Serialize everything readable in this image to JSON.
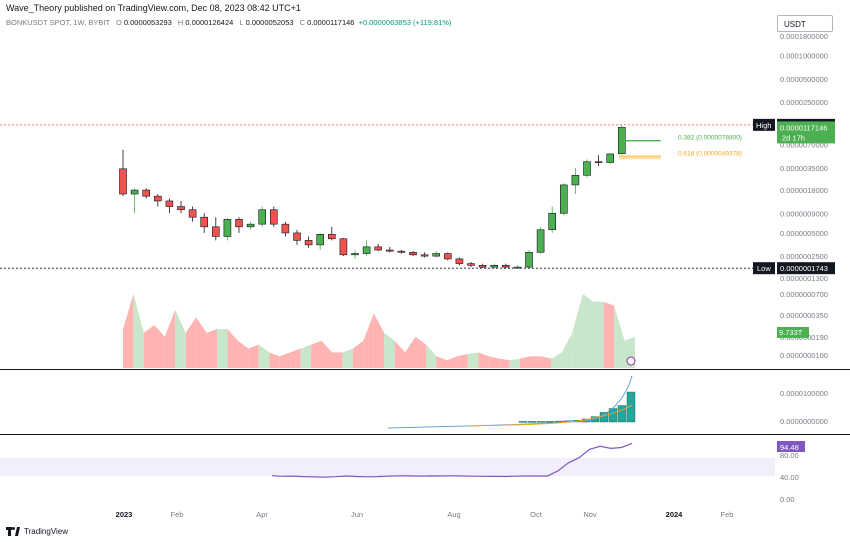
{
  "header": {
    "publisher": "Wave_Theory published on TradingView.com, Dec 08, 2023 08:42 UTC+1",
    "symbol": "BONKUSDT SPOT, 1W, BYBIT",
    "open_label": "O",
    "open": "0.0000053293",
    "high_label": "H",
    "high": "0.0000126424",
    "low_label": "L",
    "low": "0.0000052053",
    "close_label": "C",
    "close": "0.0000117146",
    "change": "+0.0000063853 (+119.81%)"
  },
  "currency": "USDT",
  "footer": {
    "brand": "TradingView"
  },
  "chart_data": {
    "type": "candlestick",
    "x_ticks": [
      "2023",
      "Feb",
      "Apr",
      "Jun",
      "Aug",
      "Oct",
      "Nov",
      "2024",
      "Feb"
    ],
    "price_axis": [
      "0.0001800000",
      "0.0001000000",
      "0.0000500000",
      "0.0000250000",
      "0.0000140000",
      "0.0000070000",
      "0.0000035000",
      "0.0000018000",
      "0.0000009000",
      "0.0000005000",
      "0.0000002500",
      "0.0000001300"
    ],
    "price_scale": "log",
    "high_line": {
      "label": "High",
      "value": "0.0000126424",
      "color": "#ef5350"
    },
    "low_line": {
      "label": "Low",
      "value": "0.0000001743"
    },
    "last_price": {
      "value": "0.0000117146",
      "countdown": "2d 17h",
      "color": "#4caf50"
    },
    "fib_levels": [
      {
        "label": "0.382 (0.0000078800)",
        "value": 7.88e-06,
        "color": "#4caf50"
      },
      {
        "label": "0.618 (0.0000049378)",
        "value": 4.9378e-06,
        "color": "#f5a623"
      }
    ],
    "candles": [
      [
        3.4e-06,
        6e-06,
        1.5e-06,
        1.6e-06
      ],
      [
        1.6e-06,
        1.9e-06,
        9e-07,
        1.8e-06
      ],
      [
        1.8e-06,
        1.9e-06,
        1.4e-06,
        1.5e-06
      ],
      [
        1.5e-06,
        1.6e-06,
        1.1e-06,
        1.3e-06
      ],
      [
        1.3e-06,
        1.4e-06,
        9e-07,
        1.1e-06
      ],
      [
        1.1e-06,
        1.3e-06,
        9e-07,
        1e-06
      ],
      [
        1e-06,
        1.1e-06,
        7e-07,
        8e-07
      ],
      [
        8e-07,
        9e-07,
        5e-07,
        6e-07
      ],
      [
        6e-07,
        8e-07,
        4e-07,
        4.5e-07
      ],
      [
        4.5e-07,
        7.8e-07,
        4e-07,
        7.5e-07
      ],
      [
        7.5e-07,
        8e-07,
        5e-07,
        6e-07
      ],
      [
        6e-07,
        7e-07,
        5.5e-07,
        6.5e-07
      ],
      [
        6.5e-07,
        1.1e-06,
        6e-07,
        1e-06
      ],
      [
        1e-06,
        1.1e-06,
        6e-07,
        6.5e-07
      ],
      [
        6.5e-07,
        7e-07,
        4.5e-07,
        5e-07
      ],
      [
        5e-07,
        5.5e-07,
        3.5e-07,
        4e-07
      ],
      [
        4e-07,
        4.5e-07,
        3.2e-07,
        3.5e-07
      ],
      [
        3.5e-07,
        5e-07,
        3e-07,
        4.8e-07
      ],
      [
        4.8e-07,
        6e-07,
        4e-07,
        4.2e-07
      ],
      [
        4.2e-07,
        4.3e-07,
        2.5e-07,
        2.6e-07
      ],
      [
        2.6e-07,
        3e-07,
        2.3e-07,
        2.7e-07
      ],
      [
        2.7e-07,
        4e-07,
        2.5e-07,
        3.3e-07
      ],
      [
        3.3e-07,
        3.6e-07,
        2.9e-07,
        3e-07
      ],
      [
        3e-07,
        3.3e-07,
        2.8e-07,
        2.9e-07
      ],
      [
        2.9e-07,
        3e-07,
        2.7e-07,
        2.8e-07
      ],
      [
        2.8e-07,
        2.9e-07,
        2.5e-07,
        2.6e-07
      ],
      [
        2.6e-07,
        2.8e-07,
        2.4e-07,
        2.5e-07
      ],
      [
        2.5e-07,
        2.9e-07,
        2.4e-07,
        2.7e-07
      ],
      [
        2.7e-07,
        2.8e-07,
        2.2e-07,
        2.3e-07
      ],
      [
        2.3e-07,
        2.4e-07,
        1.9e-07,
        2e-07
      ],
      [
        2e-07,
        2.1e-07,
        1.8e-07,
        1.9e-07
      ],
      [
        1.9e-07,
        2e-07,
        1.75e-07,
        1.8e-07
      ],
      [
        1.8e-07,
        2e-07,
        1.74e-07,
        1.9e-07
      ],
      [
        1.9e-07,
        2e-07,
        1.75e-07,
        1.8e-07
      ],
      [
        1.8e-07,
        1.9e-07,
        1.743e-07,
        1.8e-07
      ],
      [
        1.8e-07,
        3e-07,
        1.75e-07,
        2.8e-07
      ],
      [
        2.8e-07,
        6e-07,
        2.7e-07,
        5.5e-07
      ],
      [
        5.5e-07,
        1.1e-06,
        5e-07,
        9e-07
      ],
      [
        9e-07,
        2.2e-06,
        8.5e-07,
        2.1e-06
      ],
      [
        2.1e-06,
        3.5e-06,
        1.6e-06,
        2.8e-06
      ],
      [
        2.8e-06,
        4.5e-06,
        2.6e-06,
        4.2e-06
      ],
      [
        4.2e-06,
        5.1e-06,
        3.7e-06,
        4.1e-06
      ],
      [
        4.1e-06,
        5.4e-06,
        3.9e-06,
        5.3e-06
      ],
      [
        5.3293e-06,
        1.26424e-05,
        5.2053e-06,
        1.17146e-05
      ]
    ],
    "volume_panel": {
      "axis": [
        "0.0000000700",
        "0.0000000350",
        "0.0000000190",
        "0.0000000100"
      ],
      "last_label": "9.733T",
      "values": [
        0.5,
        0.95,
        0.45,
        0.55,
        0.4,
        0.75,
        0.45,
        0.65,
        0.45,
        0.5,
        0.5,
        0.35,
        0.25,
        0.3,
        0.2,
        0.15,
        0.2,
        0.25,
        0.3,
        0.35,
        0.2,
        0.2,
        0.25,
        0.35,
        0.7,
        0.45,
        0.35,
        0.2,
        0.4,
        0.3,
        0.15,
        0.1,
        0.15,
        0.18,
        0.2,
        0.15,
        0.12,
        0.1,
        0.12,
        0.15,
        0.15,
        0.12,
        0.2,
        0.45,
        0.95,
        0.85,
        0.85,
        0.8,
        0.35,
        0.4
      ],
      "colors_up": "#c8e6c9",
      "colors_down": "#ffb3b3"
    },
    "osc_panel": {
      "axis": [
        "0.0000100000",
        "0.0000000000"
      ],
      "bars": [
        0.02,
        0.02,
        0.02,
        0.02,
        0.03,
        0.04,
        0.06,
        0.1,
        0.18,
        0.32,
        0.45,
        0.55,
        1.0
      ],
      "bar_color": "#26a69a"
    },
    "rsi_panel": {
      "axis": [
        "80.00",
        "40.00",
        "0.00"
      ],
      "last_value": "94.48",
      "band": [
        40,
        70
      ],
      "color": "#7e57c2",
      "values": [
        40.5,
        39.5,
        39.8,
        39.0,
        38.5,
        38.2,
        38.8,
        40.0,
        39.2,
        38.7,
        39.0,
        39.8,
        40.4,
        40.1,
        39.9,
        40.2,
        40.0,
        40.4,
        40.0,
        39.7,
        39.5,
        39.3,
        39.2,
        39.6,
        40.0,
        40.0,
        39.8,
        48.5,
        62.0,
        70.5,
        84.5,
        89.5,
        86.0,
        87.5,
        94.48
      ]
    }
  }
}
